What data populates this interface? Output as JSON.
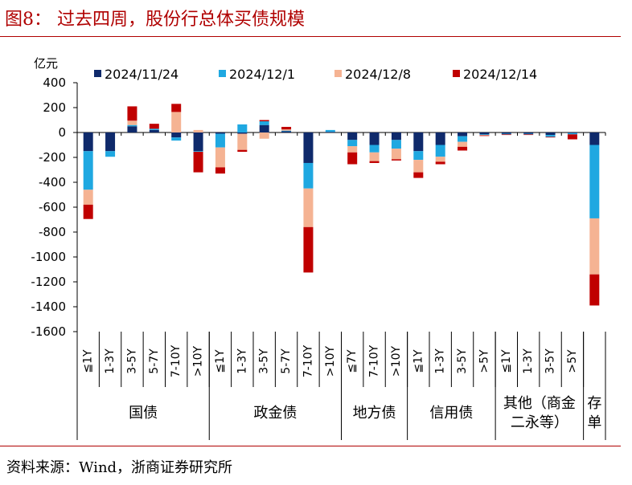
{
  "figure": {
    "title": "图8：  过去四周，股份行总体买债规模",
    "source": "资料来源：Wind，浙商证券研究所"
  },
  "chart_data": {
    "type": "bar",
    "stacked": true,
    "ylabel": "亿元",
    "ylim": [
      -1600,
      400
    ],
    "yticks": [
      400,
      200,
      0,
      -200,
      -400,
      -600,
      -800,
      -1000,
      -1200,
      -1400,
      -1600
    ],
    "legend_position": "top",
    "categories": [
      "≦1Y",
      "1-3Y",
      "3-5Y",
      "5-7Y",
      "7-10Y",
      ">10Y",
      "≦1Y",
      "1-3Y",
      "3-5Y",
      "5-7Y",
      "7-10Y",
      ">10Y",
      "≦7Y",
      "7-10Y",
      ">10Y",
      "≦1Y",
      "1-3Y",
      "3-5Y",
      ">5Y",
      "≦1Y",
      "1-3Y",
      "3-5Y",
      ">5Y",
      ""
    ],
    "groups": [
      {
        "label": "国债",
        "count": 6
      },
      {
        "label": "政金债",
        "count": 6
      },
      {
        "label": "地方债",
        "count": 3
      },
      {
        "label": "信用债",
        "count": 4
      },
      {
        "label": "其他（商金二永等）",
        "count": 4
      },
      {
        "label": "存单",
        "count": 1
      }
    ],
    "series": [
      {
        "name": "2024/11/24",
        "color": "#0f2a6b",
        "values": [
          -150,
          -150,
          50,
          20,
          -40,
          -150,
          -10,
          -10,
          60,
          10,
          -245,
          5,
          -60,
          -100,
          -60,
          -150,
          -100,
          -30,
          -15,
          -10,
          -10,
          -20,
          -5,
          -100
        ]
      },
      {
        "name": "2024/12/1",
        "color": "#1fa8e1",
        "values": [
          -310,
          -45,
          10,
          10,
          -25,
          -5,
          -110,
          65,
          30,
          5,
          -205,
          15,
          -50,
          -60,
          -70,
          -70,
          -95,
          -45,
          -5,
          -5,
          -5,
          -15,
          -10,
          -590
        ]
      },
      {
        "name": "2024/12/8",
        "color": "#f5b393",
        "values": [
          -120,
          0,
          35,
          0,
          165,
          20,
          -160,
          -130,
          -50,
          10,
          -310,
          0,
          -50,
          -70,
          -85,
          -100,
          -40,
          -40,
          -3,
          0,
          0,
          0,
          0,
          -450
        ]
      },
      {
        "name": "2024/12/14",
        "color": "#c00000",
        "values": [
          -115,
          0,
          115,
          40,
          65,
          -165,
          -50,
          -15,
          10,
          20,
          -365,
          0,
          -95,
          -15,
          -10,
          -45,
          -20,
          -30,
          -5,
          -5,
          -5,
          -5,
          -40,
          -250
        ]
      }
    ]
  }
}
